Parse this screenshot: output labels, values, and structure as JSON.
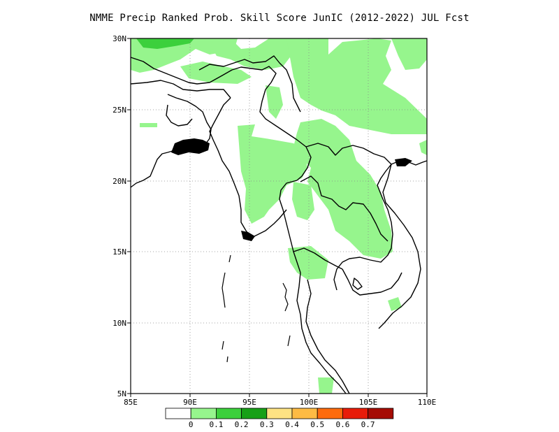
{
  "title": "NMME Precip Ranked Prob. Skill Score JunIC (2012-2022) JUL Fcst",
  "lon_labels": [
    "85E",
    "90E",
    "95E",
    "100E",
    "105E",
    "110E"
  ],
  "lat_labels": [
    "30N",
    "25N",
    "20N",
    "15N",
    "10N",
    "5N"
  ],
  "colorbar": {
    "colors": [
      "#ffffff",
      "#96f58d",
      "#3cd03c",
      "#17a017",
      "#fde283",
      "#fdbb44",
      "#fd6b0d",
      "#e81c09",
      "#a50c04"
    ],
    "labels": [
      "0",
      "0.1",
      "0.2",
      "0.3",
      "0.4",
      "0.5",
      "0.6",
      "0.7"
    ]
  },
  "colors": {
    "light_green": "#96f58d",
    "mid_green": "#3cd03c",
    "coast": "#000000"
  }
}
